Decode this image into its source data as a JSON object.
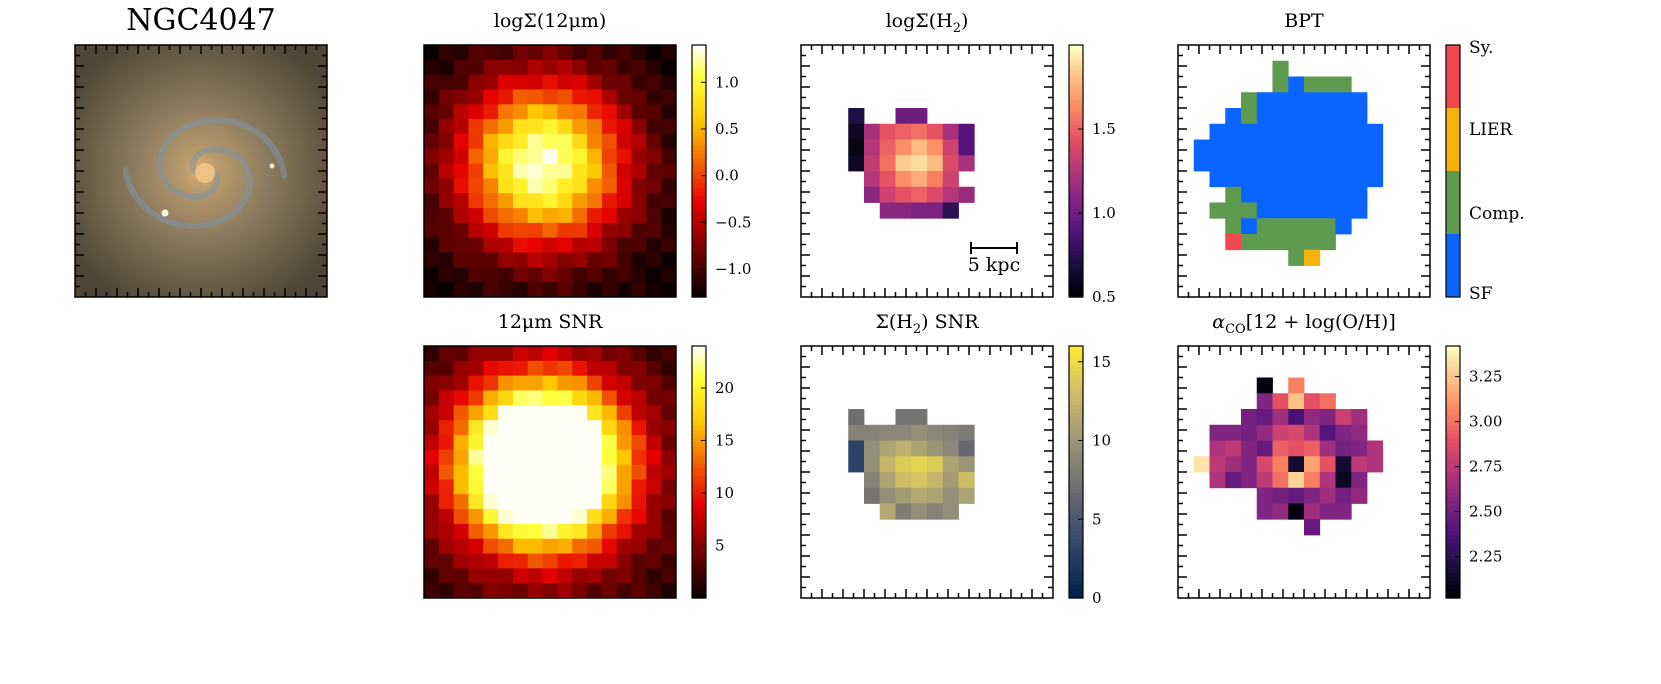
{
  "figure": {
    "galaxy_name": "NGC4047",
    "scale_bar_label": "5 kpc"
  },
  "chart_data": [
    {
      "id": "optical",
      "type": "image",
      "title": "NGC4047",
      "description_colors": {
        "core": "#e9b06a",
        "disk": "#8a7a5e",
        "arms": "#7f93a6",
        "sky": "#504536"
      }
    },
    {
      "id": "log12um",
      "type": "heatmap",
      "title": "logΣ(12μm)",
      "colormap": "hot",
      "clim": [
        -1.3,
        1.4
      ],
      "ticks": [
        1.0,
        0.5,
        0.0,
        -0.5,
        -1.0
      ],
      "tick_labels": [
        "1.0",
        "0.5",
        "0.0",
        "−0.5",
        "−1.0"
      ],
      "grid": 17,
      "center": [
        7.5,
        7.5
      ],
      "peak": 1.38,
      "scale_radius": 5.6,
      "floor": -1.3
    },
    {
      "id": "logH2",
      "type": "heatmap",
      "title": "logΣ(H2)",
      "colormap": "magma",
      "clim": [
        0.5,
        2.0
      ],
      "ticks": [
        1.5,
        1.0,
        0.5
      ],
      "tick_labels": [
        "1.5",
        "1.0",
        "0.5"
      ],
      "grid": 16,
      "rows": [
        {
          "row": 4,
          "cells": [
            [
              3,
              0.7
            ],
            [
              6,
              1.0
            ],
            [
              7,
              1.0
            ]
          ]
        },
        {
          "row": 5,
          "cells": [
            [
              3,
              0.6
            ],
            [
              4,
              1.2
            ],
            [
              5,
              1.45
            ],
            [
              6,
              1.5
            ],
            [
              7,
              1.55
            ],
            [
              8,
              1.45
            ],
            [
              9,
              1.2
            ],
            [
              10,
              0.9
            ]
          ]
        },
        {
          "row": 6,
          "cells": [
            [
              3,
              0.55
            ],
            [
              4,
              1.25
            ],
            [
              5,
              1.5
            ],
            [
              6,
              1.65
            ],
            [
              7,
              1.8
            ],
            [
              8,
              1.65
            ],
            [
              9,
              1.35
            ],
            [
              10,
              0.9
            ]
          ]
        },
        {
          "row": 7,
          "cells": [
            [
              3,
              0.6
            ],
            [
              4,
              1.3
            ],
            [
              5,
              1.55
            ],
            [
              6,
              1.85
            ],
            [
              7,
              1.9
            ],
            [
              8,
              1.8
            ],
            [
              9,
              1.4
            ],
            [
              10,
              1.2
            ]
          ]
        },
        {
          "row": 8,
          "cells": [
            [
              4,
              1.25
            ],
            [
              5,
              1.45
            ],
            [
              6,
              1.65
            ],
            [
              7,
              1.75
            ],
            [
              8,
              1.6
            ],
            [
              9,
              1.35
            ]
          ]
        },
        {
          "row": 9,
          "cells": [
            [
              4,
              1.1
            ],
            [
              5,
              1.35
            ],
            [
              6,
              1.45
            ],
            [
              7,
              1.5
            ],
            [
              8,
              1.4
            ],
            [
              9,
              1.25
            ],
            [
              10,
              1.15
            ]
          ]
        },
        {
          "row": 10,
          "cells": [
            [
              5,
              1.1
            ],
            [
              6,
              1.1
            ],
            [
              7,
              1.05
            ],
            [
              8,
              1.05
            ],
            [
              9,
              0.75
            ]
          ]
        }
      ]
    },
    {
      "id": "bpt",
      "type": "heatmap",
      "title": "BPT",
      "categories": [
        "Sy.",
        "LIER",
        "Comp.",
        "SF"
      ],
      "category_colors": {
        "Sy.": "#f2484f",
        "LIER": "#f5b20a",
        "Comp.": "#5e9a4f",
        "SF": "#0a64ff"
      },
      "grid": 16,
      "runs": [
        {
          "row": 1,
          "from": 6,
          "to": 6,
          "cat": "Comp."
        },
        {
          "row": 2,
          "from": 6,
          "to": 6,
          "cat": "Comp."
        },
        {
          "row": 2,
          "from": 7,
          "to": 7,
          "cat": "SF"
        },
        {
          "row": 2,
          "from": 8,
          "to": 10,
          "cat": "Comp."
        },
        {
          "row": 3,
          "from": 4,
          "to": 4,
          "cat": "Comp."
        },
        {
          "row": 3,
          "from": 5,
          "to": 10,
          "cat": "SF"
        },
        {
          "row": 3,
          "from": 11,
          "to": 11,
          "cat": "SF"
        },
        {
          "row": 4,
          "from": 3,
          "to": 3,
          "cat": "SF"
        },
        {
          "row": 4,
          "from": 4,
          "to": 4,
          "cat": "Comp."
        },
        {
          "row": 4,
          "from": 5,
          "to": 11,
          "cat": "SF"
        },
        {
          "row": 5,
          "from": 2,
          "to": 12,
          "cat": "SF"
        },
        {
          "row": 6,
          "from": 1,
          "to": 12,
          "cat": "SF"
        },
        {
          "row": 7,
          "from": 1,
          "to": 12,
          "cat": "SF"
        },
        {
          "row": 8,
          "from": 2,
          "to": 12,
          "cat": "SF"
        },
        {
          "row": 9,
          "from": 3,
          "to": 3,
          "cat": "Comp."
        },
        {
          "row": 9,
          "from": 4,
          "to": 11,
          "cat": "SF"
        },
        {
          "row": 10,
          "from": 2,
          "to": 4,
          "cat": "Comp."
        },
        {
          "row": 10,
          "from": 5,
          "to": 11,
          "cat": "SF"
        },
        {
          "row": 11,
          "from": 3,
          "to": 3,
          "cat": "Comp."
        },
        {
          "row": 11,
          "from": 4,
          "to": 4,
          "cat": "SF"
        },
        {
          "row": 11,
          "from": 5,
          "to": 9,
          "cat": "Comp."
        },
        {
          "row": 11,
          "from": 10,
          "to": 10,
          "cat": "SF"
        },
        {
          "row": 12,
          "from": 3,
          "to": 3,
          "cat": "Sy."
        },
        {
          "row": 12,
          "from": 4,
          "to": 4,
          "cat": "Comp."
        },
        {
          "row": 12,
          "from": 5,
          "to": 9,
          "cat": "Comp."
        },
        {
          "row": 13,
          "from": 7,
          "to": 7,
          "cat": "Comp."
        },
        {
          "row": 13,
          "from": 8,
          "to": 8,
          "cat": "LIER"
        }
      ]
    },
    {
      "id": "snr12um",
      "type": "heatmap",
      "title": "12μm SNR",
      "colormap": "hot",
      "clim": [
        0,
        24
      ],
      "ticks": [
        20,
        15,
        10,
        5
      ],
      "tick_labels": [
        "20",
        "15",
        "10",
        "5"
      ],
      "grid": 17,
      "center": [
        7.5,
        7.5
      ],
      "peak": 42,
      "scale_radius": 5.5,
      "floor": 1.5
    },
    {
      "id": "snrH2",
      "type": "heatmap",
      "title": "Σ(H2) SNR",
      "colormap": "cividis",
      "clim": [
        0,
        16
      ],
      "ticks": [
        15,
        10,
        5,
        0
      ],
      "tick_labels": [
        "15",
        "10",
        "5",
        "0"
      ],
      "grid": 16,
      "rows": [
        {
          "row": 4,
          "cells": [
            [
              3,
              7.0
            ],
            [
              6,
              7.5
            ],
            [
              7,
              7.5
            ]
          ]
        },
        {
          "row": 5,
          "cells": [
            [
              3,
              8.5
            ],
            [
              4,
              8.5
            ],
            [
              5,
              9.0
            ],
            [
              6,
              9.0
            ],
            [
              7,
              9.5
            ],
            [
              8,
              9.0
            ],
            [
              9,
              8.5
            ],
            [
              10,
              8.0
            ]
          ]
        },
        {
          "row": 6,
          "cells": [
            [
              3,
              3.0
            ],
            [
              4,
              9.5
            ],
            [
              5,
              11.0
            ],
            [
              6,
              12.0
            ],
            [
              7,
              11.0
            ],
            [
              8,
              10.0
            ],
            [
              9,
              9.0
            ],
            [
              10,
              6.5
            ]
          ]
        },
        {
          "row": 7,
          "cells": [
            [
              3,
              3.0
            ],
            [
              4,
              9.5
            ],
            [
              5,
              12.5
            ],
            [
              6,
              14.0
            ],
            [
              7,
              14.5
            ],
            [
              8,
              14.0
            ],
            [
              9,
              11.0
            ],
            [
              10,
              10.0
            ]
          ]
        },
        {
          "row": 8,
          "cells": [
            [
              4,
              8.5
            ],
            [
              5,
              11.0
            ],
            [
              6,
              13.0
            ],
            [
              7,
              13.5
            ],
            [
              8,
              12.5
            ],
            [
              9,
              10.5
            ],
            [
              10,
              13.0
            ]
          ]
        },
        {
          "row": 9,
          "cells": [
            [
              4,
              7.5
            ],
            [
              5,
              9.5
            ],
            [
              6,
              10.5
            ],
            [
              7,
              11.5
            ],
            [
              8,
              11.0
            ],
            [
              9,
              9.5
            ],
            [
              10,
              11.0
            ]
          ]
        },
        {
          "row": 10,
          "cells": [
            [
              5,
              11.5
            ],
            [
              6,
              8.0
            ],
            [
              7,
              9.5
            ],
            [
              8,
              8.5
            ],
            [
              9,
              9.5
            ]
          ]
        }
      ]
    },
    {
      "id": "alphaCO",
      "type": "heatmap",
      "title": "αCO[12+log(O/H)]",
      "colormap": "magma",
      "clim": [
        2.02,
        3.42
      ],
      "ticks": [
        3.25,
        3.0,
        2.75,
        2.5,
        2.25
      ],
      "tick_labels": [
        "3.25",
        "3.00",
        "2.75",
        "2.50",
        "2.25"
      ],
      "grid": 16,
      "rows": [
        {
          "row": 2,
          "cells": [
            [
              5,
              2.05
            ],
            [
              7,
              3.05
            ]
          ]
        },
        {
          "row": 3,
          "cells": [
            [
              5,
              2.55
            ],
            [
              6,
              2.9
            ],
            [
              7,
              3.25
            ],
            [
              8,
              2.9
            ],
            [
              9,
              3.0
            ]
          ]
        },
        {
          "row": 4,
          "cells": [
            [
              4,
              2.5
            ],
            [
              5,
              2.45
            ],
            [
              6,
              2.65
            ],
            [
              7,
              2.35
            ],
            [
              8,
              2.6
            ],
            [
              9,
              2.55
            ],
            [
              10,
              2.8
            ],
            [
              11,
              2.65
            ]
          ]
        },
        {
          "row": 5,
          "cells": [
            [
              2,
              2.55
            ],
            [
              3,
              2.55
            ],
            [
              4,
              2.5
            ],
            [
              5,
              2.6
            ],
            [
              6,
              2.8
            ],
            [
              7,
              2.85
            ],
            [
              8,
              2.7
            ],
            [
              9,
              2.4
            ],
            [
              10,
              2.55
            ],
            [
              11,
              2.6
            ]
          ]
        },
        {
          "row": 6,
          "cells": [
            [
              2,
              2.7
            ],
            [
              3,
              2.75
            ],
            [
              4,
              2.55
            ],
            [
              5,
              2.45
            ],
            [
              6,
              2.95
            ],
            [
              7,
              2.9
            ],
            [
              8,
              2.95
            ],
            [
              9,
              2.65
            ],
            [
              10,
              2.5
            ],
            [
              11,
              2.55
            ],
            [
              12,
              2.7
            ]
          ]
        },
        {
          "row": 7,
          "cells": [
            [
              1,
              3.35
            ],
            [
              2,
              2.75
            ],
            [
              3,
              2.65
            ],
            [
              4,
              2.55
            ],
            [
              5,
              2.85
            ],
            [
              6,
              3.05
            ],
            [
              7,
              2.15
            ],
            [
              8,
              3.15
            ],
            [
              9,
              2.9
            ],
            [
              10,
              2.15
            ],
            [
              11,
              2.75
            ],
            [
              12,
              2.7
            ]
          ]
        },
        {
          "row": 8,
          "cells": [
            [
              2,
              2.7
            ],
            [
              3,
              2.45
            ],
            [
              4,
              2.55
            ],
            [
              5,
              2.75
            ],
            [
              6,
              3.0
            ],
            [
              7,
              3.3
            ],
            [
              8,
              3.05
            ],
            [
              9,
              2.7
            ],
            [
              10,
              2.1
            ],
            [
              11,
              2.55
            ]
          ]
        },
        {
          "row": 9,
          "cells": [
            [
              5,
              2.55
            ],
            [
              6,
              2.5
            ],
            [
              7,
              2.45
            ],
            [
              8,
              2.55
            ],
            [
              9,
              2.65
            ],
            [
              10,
              2.5
            ],
            [
              11,
              2.6
            ]
          ]
        },
        {
          "row": 10,
          "cells": [
            [
              5,
              2.55
            ],
            [
              6,
              2.6
            ],
            [
              7,
              2.05
            ],
            [
              8,
              2.65
            ],
            [
              9,
              2.55
            ],
            [
              10,
              2.55
            ]
          ]
        },
        {
          "row": 11,
          "cells": [
            [
              8,
              2.45
            ]
          ]
        }
      ]
    }
  ]
}
